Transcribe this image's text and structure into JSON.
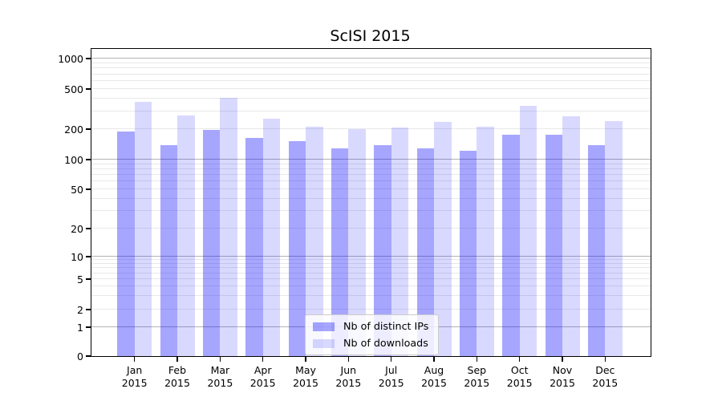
{
  "title": "ScISI 2015",
  "chart_data": {
    "type": "bar",
    "title": "ScISI 2015",
    "yscale": "symlog",
    "grid": true,
    "legend_position": "lower center",
    "year_label": "2015",
    "months": [
      "Jan",
      "Feb",
      "Mar",
      "Apr",
      "May",
      "Jun",
      "Jul",
      "Aug",
      "Sep",
      "Oct",
      "Nov",
      "Dec"
    ],
    "categories": [
      "Jan 2015",
      "Feb 2015",
      "Mar 2015",
      "Apr 2015",
      "May 2015",
      "Jun 2015",
      "Jul 2015",
      "Aug 2015",
      "Sep 2015",
      "Oct 2015",
      "Nov 2015",
      "Dec 2015"
    ],
    "series": [
      {
        "name": "Nb of distinct IPs",
        "color": "rgba(0,0,255,0.35)",
        "values": [
          190,
          139,
          197,
          164,
          152,
          130,
          138,
          130,
          122,
          175,
          176,
          139
        ]
      },
      {
        "name": "Nb of downloads",
        "color": "rgba(0,0,255,0.15)",
        "values": [
          372,
          274,
          408,
          255,
          212,
          199,
          206,
          236,
          210,
          340,
          267,
          240
        ]
      }
    ],
    "yticks": [
      0,
      1,
      2,
      5,
      10,
      20,
      50,
      100,
      200,
      500,
      1000
    ],
    "ylim": [
      0,
      1245
    ],
    "colors": {
      "grid_major": "#b3b3b3",
      "grid_minor": "#e8e8e8",
      "axis": "#000000",
      "background": "#ffffff"
    }
  }
}
